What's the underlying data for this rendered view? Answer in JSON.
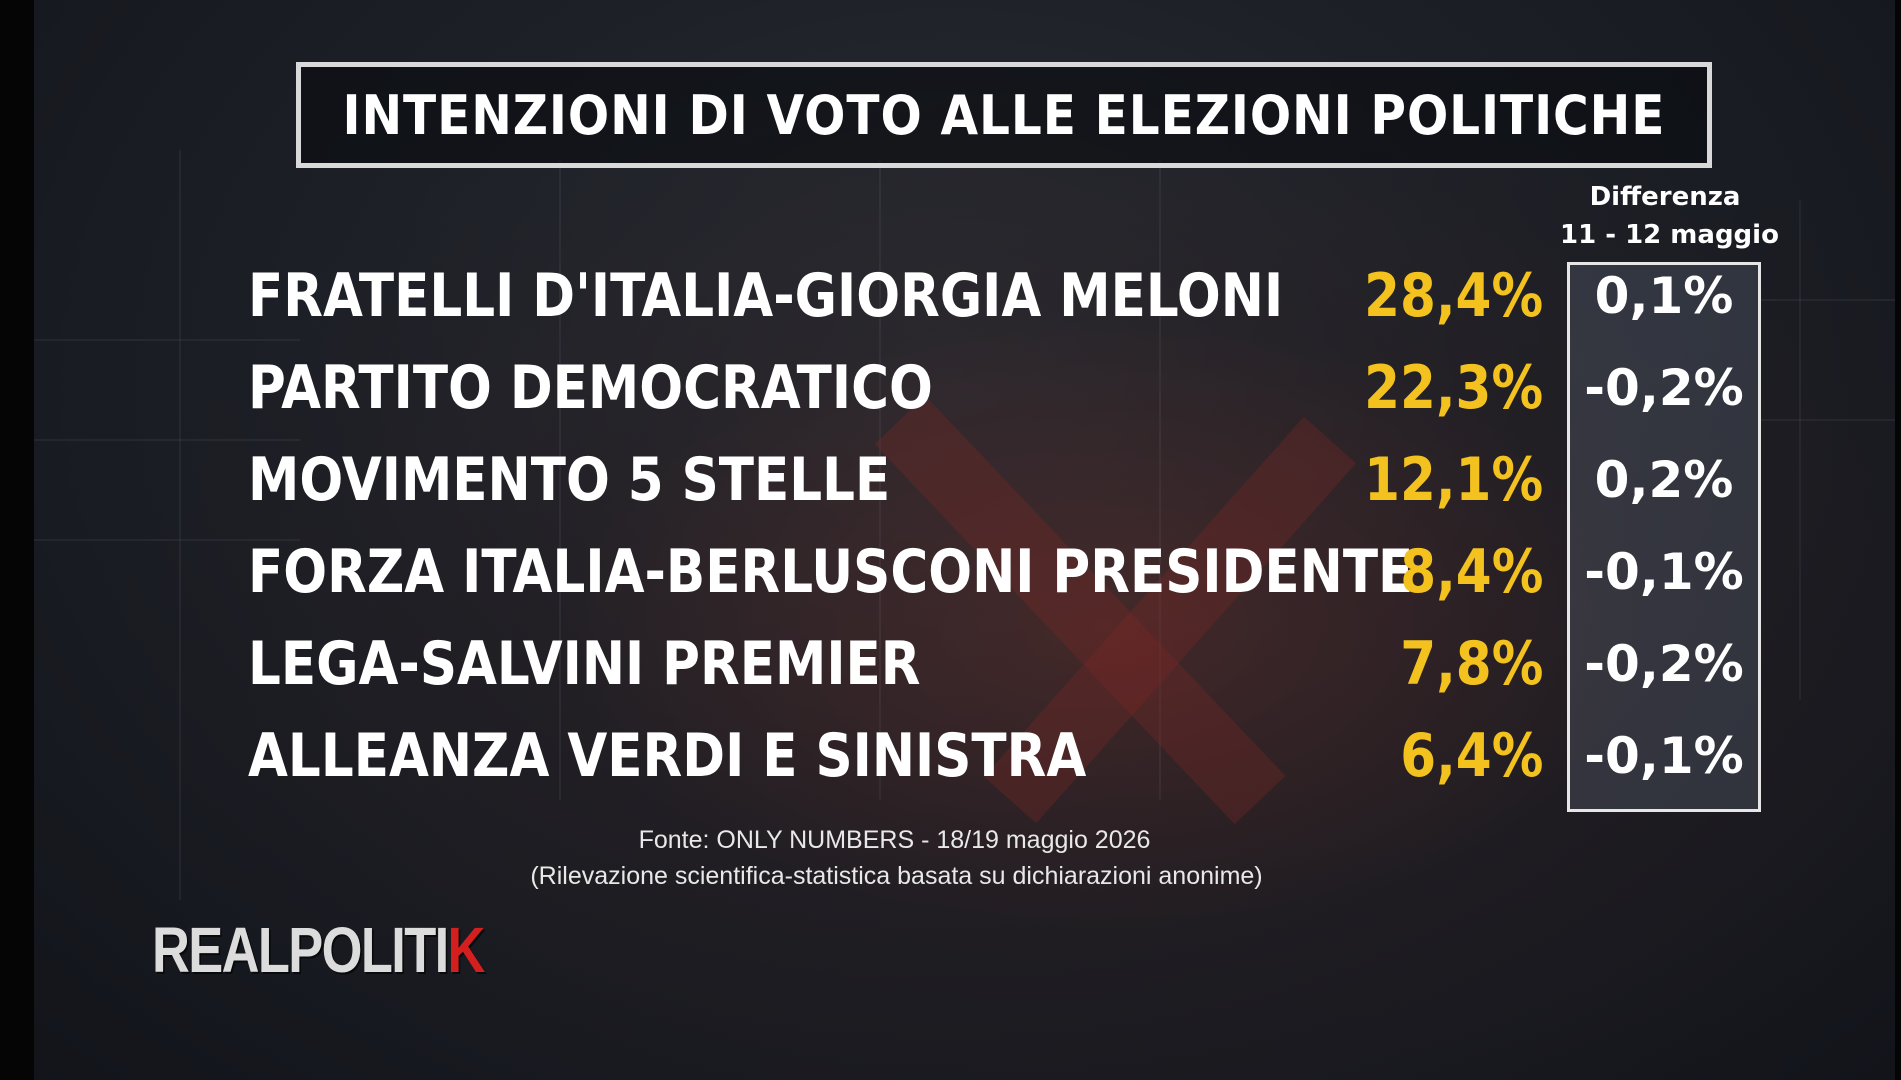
{
  "title": "INTENZIONI DI VOTO ALLE ELEZIONI POLITICHE",
  "diff_header": {
    "line1": "Differenza",
    "line2": "11 - 12 maggio"
  },
  "chart_data": {
    "type": "table",
    "title": "INTENZIONI DI VOTO ALLE ELEZIONI POLITICHE",
    "columns": [
      "",
      "",
      "Differenza 11 - 12 maggio"
    ],
    "rows": [
      {
        "party": "FRATELLI D'ITALIA-GIORGIA MELONI",
        "value": 28.4,
        "value_label": "28,4%",
        "change": 0.1,
        "change_label": "0,1%"
      },
      {
        "party": "PARTITO DEMOCRATICO",
        "value": 22.3,
        "value_label": "22,3%",
        "change": -0.2,
        "change_label": "-0,2%"
      },
      {
        "party": "MOVIMENTO 5 STELLE",
        "value": 12.1,
        "value_label": "12,1%",
        "change": 0.2,
        "change_label": "0,2%"
      },
      {
        "party": "FORZA ITALIA-BERLUSCONI PRESIDENTE",
        "value": 8.4,
        "value_label": "8,4%",
        "change": -0.1,
        "change_label": "-0,1%"
      },
      {
        "party": "LEGA-SALVINI PREMIER",
        "value": 7.8,
        "value_label": "7,8%",
        "change": -0.2,
        "change_label": "-0,2%"
      },
      {
        "party": "ALLEANZA VERDI E SINISTRA",
        "value": 6.4,
        "value_label": "6,4%",
        "change": -0.1,
        "change_label": "-0,1%"
      }
    ]
  },
  "source": {
    "line1": "Fonte: ONLY NUMBERS - 18/19 maggio 2026",
    "line2": "(Rilevazione scientifica-statistica basata su dichiarazioni anonime)"
  },
  "logo": {
    "main": "REALPOLITI",
    "accent": "K"
  },
  "colors": {
    "value": "#f4c21f",
    "text": "#ffffff",
    "logo_accent": "#d41f1f"
  }
}
